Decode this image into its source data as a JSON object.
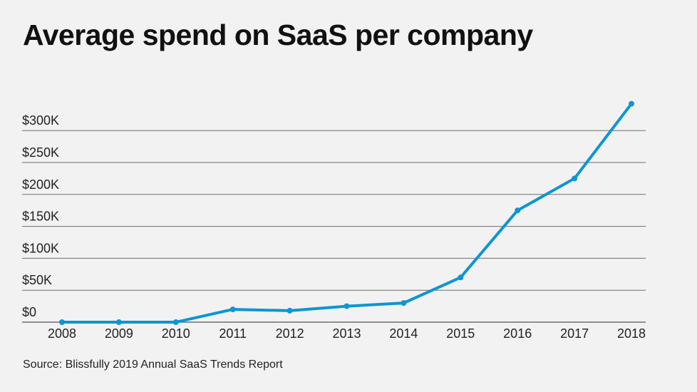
{
  "title": "Average spend on SaaS per company",
  "source": "Source: Blissfully 2019 Annual SaaS Trends Report",
  "chart_data": {
    "type": "line",
    "title": "Average spend on SaaS per company",
    "xlabel": "",
    "ylabel": "",
    "categories": [
      "2008",
      "2009",
      "2010",
      "2011",
      "2012",
      "2013",
      "2014",
      "2015",
      "2016",
      "2017",
      "2018"
    ],
    "series": [
      {
        "values": [
          0,
          0,
          0,
          20000,
          18000,
          25000,
          30000,
          70000,
          175000,
          225000,
          342000
        ],
        "color": "#0e95d3"
      }
    ],
    "yticks": [
      0,
      50000,
      100000,
      150000,
      200000,
      250000,
      300000
    ],
    "ytick_labels": [
      "$0",
      "$50K",
      "$100K",
      "$150K",
      "$200K",
      "$250K",
      "$300K"
    ],
    "ylim": [
      0,
      300000
    ],
    "grid": true,
    "legend": "none",
    "colors": {
      "line": "#0e95d3",
      "grid": "#6e6e6e",
      "background": "#f1f2f1"
    }
  }
}
